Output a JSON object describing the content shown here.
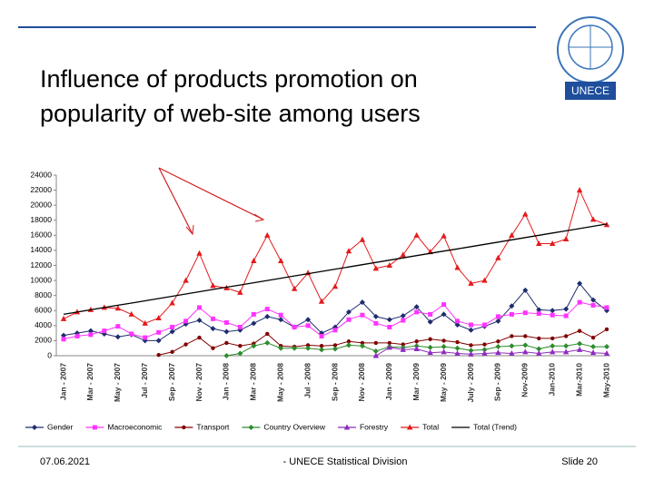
{
  "header": {
    "title_lines": [
      "Influence of products promotion on",
      "popularity of web-site among users"
    ],
    "logo_text": "UNECE"
  },
  "chart_data": {
    "type": "line",
    "categories": [
      "Jan - 2007",
      null,
      "Mar - 2007",
      null,
      "May - 2007",
      null,
      "Jul - 2007",
      null,
      "Sep - 2007",
      null,
      "Nov - 2007",
      null,
      "Jan - 2008",
      null,
      "Mar - 2008",
      null,
      "May - 2008",
      null,
      "Jul - 2008",
      null,
      "Sep - 2008",
      null,
      "Nov - 2008",
      null,
      "Jan - 2009",
      null,
      "Mar - 2009",
      null,
      "May - 2009",
      null,
      "July - 2009",
      null,
      "Sep - 2009",
      null,
      "Nov-2009",
      null,
      "Jan-2010",
      null,
      "Mar-2010",
      null,
      "May-2010"
    ],
    "ylim": [
      0,
      24000
    ],
    "yticks": [
      0,
      2000,
      4000,
      6000,
      8000,
      10000,
      12000,
      14000,
      16000,
      18000,
      20000,
      22000,
      24000
    ],
    "legend": "bottom",
    "series": [
      {
        "name": "Gender",
        "color": "#1f2d6e",
        "marker": "diamond",
        "values": [
          2700,
          3000,
          3300,
          2900,
          2500,
          2800,
          2000,
          2000,
          3200,
          4200,
          4700,
          3600,
          3200,
          3400,
          4300,
          5200,
          4800,
          3800,
          4800,
          3000,
          3800,
          5800,
          7100,
          5200,
          4800,
          5300,
          6500,
          4500,
          5500,
          4100,
          3400,
          3900,
          4600,
          6600,
          8700,
          6100,
          6000,
          6200,
          9600,
          7400,
          6000
        ]
      },
      {
        "name": "Macroeconomic",
        "color": "#ff33ff",
        "marker": "square",
        "values": [
          2200,
          2600,
          2800,
          3300,
          3900,
          2900,
          2400,
          3100,
          3800,
          4600,
          6400,
          4900,
          4400,
          3800,
          5500,
          6200,
          5400,
          3800,
          4000,
          2600,
          3400,
          4800,
          5400,
          4300,
          3800,
          4700,
          5800,
          5500,
          6800,
          4600,
          4100,
          4100,
          5200,
          5500,
          5700,
          5600,
          5400,
          5300,
          7100,
          6700,
          6400
        ]
      },
      {
        "name": "Transport",
        "color": "#800000",
        "marker": "circle",
        "values": [
          null,
          null,
          null,
          null,
          null,
          null,
          null,
          100,
          500,
          1500,
          2400,
          1000,
          1700,
          1300,
          1600,
          2900,
          1300,
          1200,
          1400,
          1300,
          1400,
          1900,
          1700,
          1700,
          1700,
          1500,
          1900,
          2200,
          2000,
          1800,
          1400,
          1500,
          1900,
          2600,
          2600,
          2300,
          2300,
          2600,
          3300,
          2400,
          3500
        ]
      },
      {
        "name": "Country Overview",
        "color": "#2e8b2e",
        "marker": "diamond",
        "values": [
          null,
          null,
          null,
          null,
          null,
          null,
          null,
          null,
          null,
          null,
          null,
          null,
          0,
          300,
          1300,
          1700,
          1000,
          1000,
          1000,
          800,
          900,
          1400,
          1300,
          600,
          1200,
          1100,
          1300,
          1100,
          1200,
          1000,
          700,
          800,
          1200,
          1300,
          1400,
          900,
          1300,
          1300,
          1600,
          1200,
          1200
        ]
      },
      {
        "name": "Forestry",
        "color": "#8e2bbd",
        "marker": "triangle",
        "values": [
          null,
          null,
          null,
          null,
          null,
          null,
          null,
          null,
          null,
          null,
          null,
          null,
          null,
          null,
          null,
          null,
          null,
          null,
          null,
          null,
          null,
          null,
          null,
          0,
          1100,
          800,
          900,
          400,
          500,
          300,
          200,
          300,
          400,
          300,
          500,
          300,
          500,
          500,
          800,
          400,
          300
        ]
      },
      {
        "name": "Total",
        "color": "#e41a1c",
        "marker": "triangle",
        "values": [
          4900,
          5800,
          6100,
          6400,
          6300,
          5500,
          4300,
          5000,
          7000,
          10000,
          13600,
          9300,
          9000,
          8400,
          12600,
          16000,
          12600,
          8900,
          11000,
          7200,
          9200,
          13900,
          15400,
          11600,
          12000,
          13400,
          16000,
          13800,
          15900,
          11700,
          9600,
          10000,
          13000,
          16000,
          18800,
          14900,
          14900,
          15500,
          22000,
          18100,
          17400
        ]
      },
      {
        "name": "Total (Trend)",
        "color": "#000000",
        "marker": "none",
        "values": [
          5500,
          5800,
          6100,
          6400,
          6700,
          7000,
          7300,
          7600,
          7900,
          8200,
          8500,
          8800,
          9100,
          9400,
          9700,
          10000,
          10300,
          10600,
          10900,
          11200,
          11500,
          11800,
          12100,
          12400,
          12700,
          13000,
          13300,
          13600,
          13900,
          14200,
          14500,
          14800,
          15100,
          15400,
          15700,
          16000,
          16300,
          16600,
          16900,
          17200,
          17500
        ]
      }
    ]
  },
  "footer": {
    "date": "07.06.2021",
    "center": "- UNECE Statistical Division",
    "slide": "Slide 20"
  }
}
